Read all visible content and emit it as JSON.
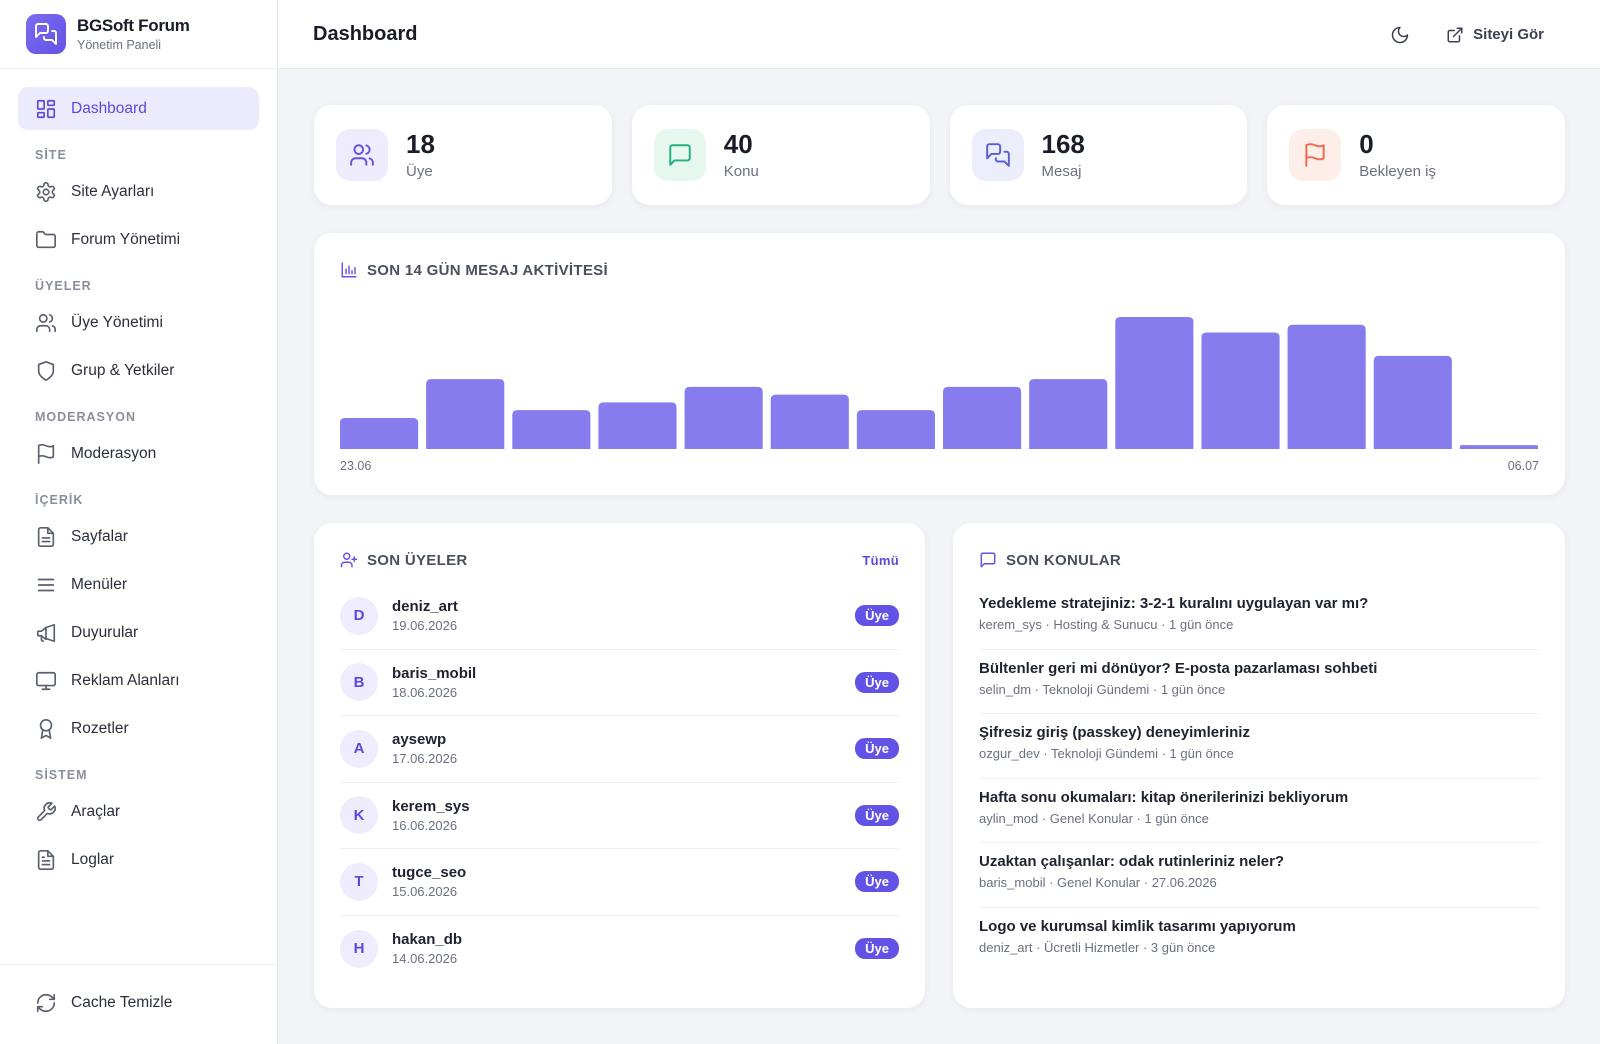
{
  "brand": {
    "title": "BGSoft Forum",
    "subtitle": "Yönetim Paneli"
  },
  "sidebar": {
    "dashboard": "Dashboard",
    "sections": {
      "site": "SİTE",
      "members": "ÜYELER",
      "moderation": "MODERASYON",
      "content": "İÇERİK",
      "system": "SİSTEM"
    },
    "items": {
      "site_settings": "Site Ayarları",
      "forum_management": "Forum Yönetimi",
      "member_management": "Üye Yönetimi",
      "groups": "Grup & Yetkiler",
      "moderation": "Moderasyon",
      "pages": "Sayfalar",
      "menus": "Menüler",
      "announcements": "Duyurular",
      "ad_areas": "Reklam Alanları",
      "badges": "Rozetler",
      "tools": "Araçlar",
      "logs": "Loglar"
    },
    "footer": "Cache Temizle"
  },
  "header": {
    "title": "Dashboard",
    "view_site": "Siteyi Gör"
  },
  "stats": [
    {
      "value": "18",
      "label": "Üye",
      "icon": "users-icon",
      "color": "#6352e6",
      "bg": "#eeecfd"
    },
    {
      "value": "40",
      "label": "Konu",
      "icon": "message-square-icon",
      "color": "#22b07d",
      "bg": "#e6f7ef"
    },
    {
      "value": "168",
      "label": "Mesaj",
      "icon": "messages-icon",
      "color": "#5b5fd6",
      "bg": "#eceefc"
    },
    {
      "value": "0",
      "label": "Bekleyen iş",
      "icon": "flag-icon",
      "color": "#ef6a4c",
      "bg": "#fdeeea"
    }
  ],
  "activity": {
    "title": "SON 14 GÜN MESAJ AKTİVİTESİ",
    "start_label": "23.06",
    "end_label": "06.07"
  },
  "chart_data": {
    "type": "bar",
    "title": "SON 14 GÜN MESAJ AKTİVİTESİ",
    "xlabel": "",
    "ylabel": "",
    "x_start": "23.06",
    "x_end": "06.07",
    "values": [
      4,
      9,
      5,
      6,
      8,
      7,
      5,
      8,
      9,
      17,
      15,
      16,
      12,
      0.5
    ],
    "color": "#877cee",
    "ylim": [
      0,
      17
    ]
  },
  "recent_members": {
    "title": "SON ÜYELER",
    "all_link": "Tümü",
    "items": [
      {
        "initial": "D",
        "name": "deniz_art",
        "date": "19.06.2026",
        "role": "Üye"
      },
      {
        "initial": "B",
        "name": "baris_mobil",
        "date": "18.06.2026",
        "role": "Üye"
      },
      {
        "initial": "A",
        "name": "aysewp",
        "date": "17.06.2026",
        "role": "Üye"
      },
      {
        "initial": "K",
        "name": "kerem_sys",
        "date": "16.06.2026",
        "role": "Üye"
      },
      {
        "initial": "T",
        "name": "tugce_seo",
        "date": "15.06.2026",
        "role": "Üye"
      },
      {
        "initial": "H",
        "name": "hakan_db",
        "date": "14.06.2026",
        "role": "Üye"
      }
    ]
  },
  "recent_topics": {
    "title": "SON KONULAR",
    "items": [
      {
        "title": "Yedekleme stratejiniz: 3-2-1 kuralını uygulayan var mı?",
        "meta": "kerem_sys · Hosting & Sunucu · 1 gün önce"
      },
      {
        "title": "Bültenler geri mi dönüyor? E-posta pazarlaması sohbeti",
        "meta": "selin_dm · Teknoloji Gündemi · 1 gün önce"
      },
      {
        "title": "Şifresiz giriş (passkey) deneyimleriniz",
        "meta": "ozgur_dev · Teknoloji Gündemi · 1 gün önce"
      },
      {
        "title": "Hafta sonu okumaları: kitap önerilerinizi bekliyorum",
        "meta": "aylin_mod · Genel Konular · 1 gün önce"
      },
      {
        "title": "Uzaktan çalışanlar: odak rutinleriniz neler?",
        "meta": "baris_mobil · Genel Konular · 27.06.2026"
      },
      {
        "title": "Logo ve kurumsal kimlik tasarımı yapıyorum",
        "meta": "deniz_art · Ücretli Hizmetler · 3 gün önce"
      }
    ]
  }
}
